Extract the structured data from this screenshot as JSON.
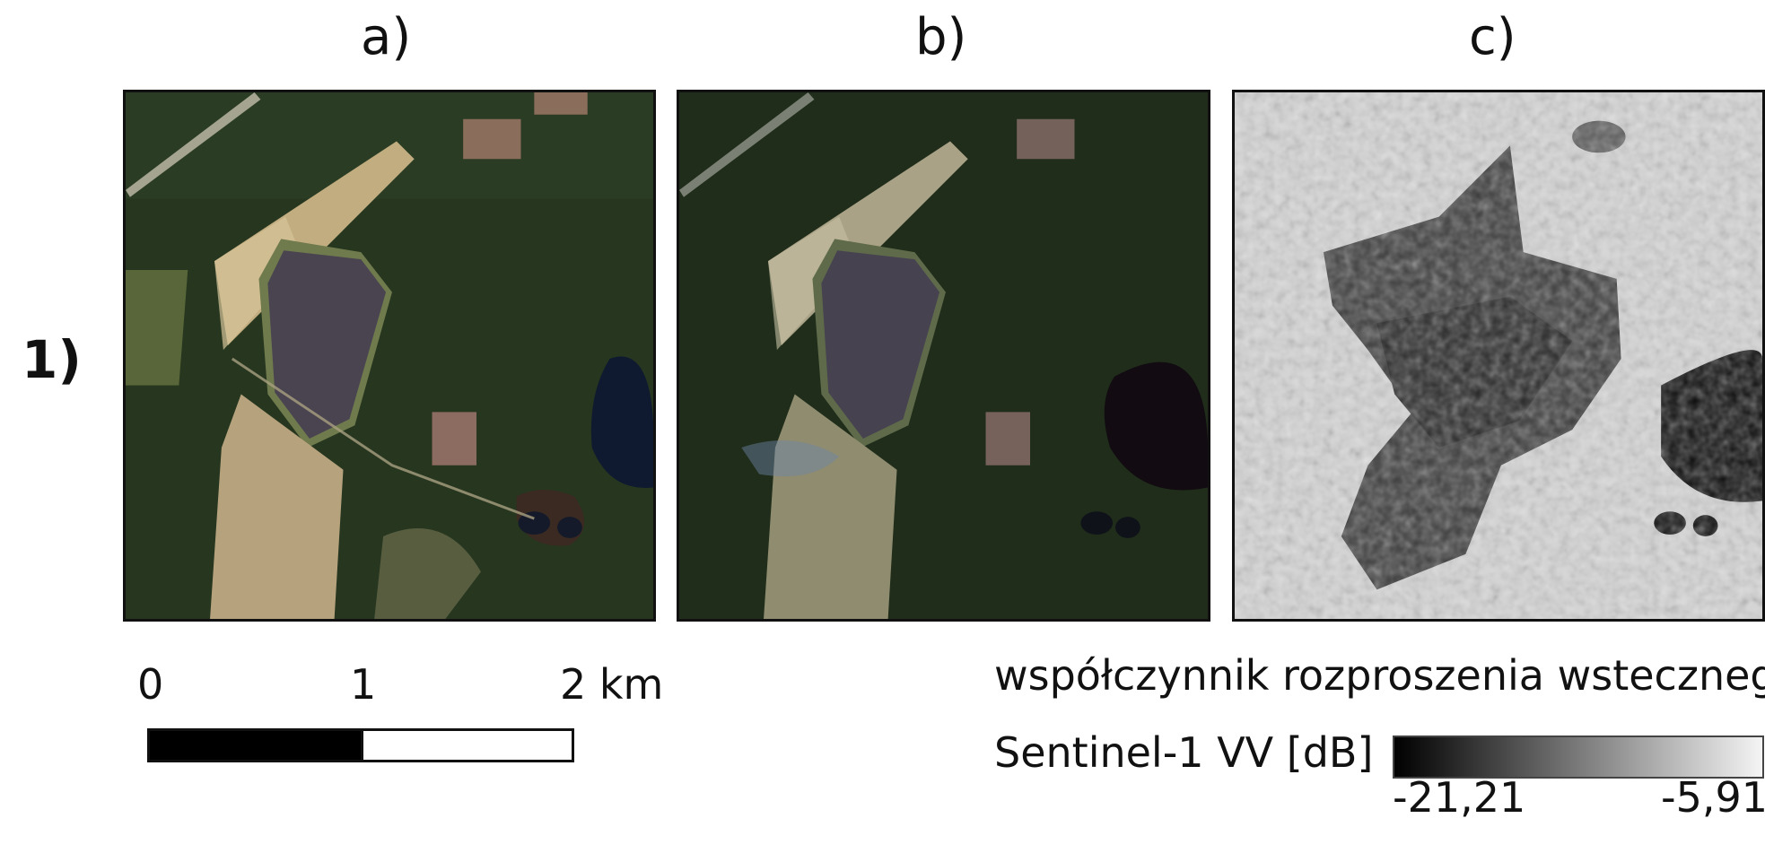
{
  "panels": {
    "a": {
      "label": "a)"
    },
    "b": {
      "label": "b)"
    },
    "c": {
      "label": "c)"
    }
  },
  "row": {
    "label": "1)"
  },
  "scale": {
    "tick_0": "0",
    "tick_1": "1",
    "tick_2": "2 km"
  },
  "legend": {
    "title_line1": "współczynnik rozproszenia wstecznego",
    "title_line2": "Sentinel-1 VV [dB]",
    "min_label": "-21,21",
    "max_label": "-5,91",
    "color_min": "#000000",
    "color_max": "#f4f4f4"
  },
  "colors": {
    "forest": "#23331d",
    "field": "#b9a07a",
    "solar": "#4b4550",
    "water": "#121a2c"
  }
}
